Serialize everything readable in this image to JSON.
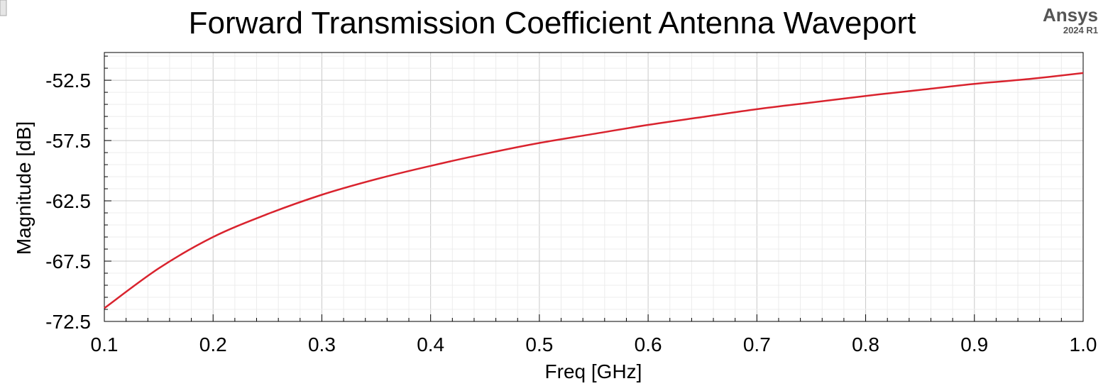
{
  "brand": {
    "name": "Ansys",
    "version": "2024 R1"
  },
  "chart_data": {
    "type": "line",
    "title": "Forward Transmission Coefficient Antenna Waveport",
    "xlabel": "Freq [GHz]",
    "ylabel": "Magnitude [dB]",
    "xlim": [
      0.1,
      1.0
    ],
    "ylim": [
      -72.5,
      -50.2
    ],
    "x_ticks": [
      "0.1",
      "0.2",
      "0.3",
      "0.4",
      "0.5",
      "0.6",
      "0.7",
      "0.8",
      "0.9",
      "1.0"
    ],
    "y_ticks": [
      "-52.5",
      "-57.5",
      "-62.5",
      "-67.5",
      "-72.5"
    ],
    "grid": true,
    "series": [
      {
        "name": "",
        "color": "#d9232e",
        "x": [
          0.1,
          0.15,
          0.2,
          0.25,
          0.3,
          0.35,
          0.4,
          0.45,
          0.5,
          0.55,
          0.6,
          0.65,
          0.7,
          0.75,
          0.8,
          0.85,
          0.9,
          0.95,
          1.0
        ],
        "y": [
          -71.4,
          -68.1,
          -65.5,
          -63.6,
          -62.0,
          -60.7,
          -59.6,
          -58.6,
          -57.7,
          -56.95,
          -56.2,
          -55.55,
          -54.9,
          -54.35,
          -53.8,
          -53.3,
          -52.8,
          -52.4,
          -51.9
        ]
      }
    ]
  }
}
